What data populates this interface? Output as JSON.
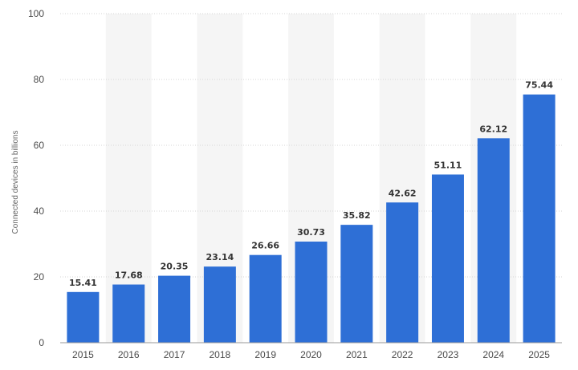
{
  "chart_data": {
    "type": "bar",
    "title": "",
    "xlabel": "",
    "ylabel": "Connected devices in billions",
    "categories": [
      "2015",
      "2016",
      "2017",
      "2018",
      "2019",
      "2020",
      "2021",
      "2022",
      "2023",
      "2024",
      "2025"
    ],
    "values": [
      15.41,
      17.68,
      20.35,
      23.14,
      26.66,
      30.73,
      35.82,
      42.62,
      51.11,
      62.12,
      75.44
    ],
    "data_labels": [
      "15.41",
      "17.68",
      "20.35",
      "23.14",
      "26.66",
      "30.73",
      "35.82",
      "42.62",
      "51.11",
      "62.12",
      "75.44"
    ],
    "ylim": [
      0,
      100
    ],
    "yticks": [
      "0",
      "20",
      "40",
      "60",
      "80",
      "100"
    ],
    "grid": "horizontal dotted",
    "legend": "none",
    "colors": {
      "bar": "#2e6fd6",
      "band": "#f5f5f5",
      "grid": "#d6d6d6",
      "axis": "#999999"
    }
  }
}
